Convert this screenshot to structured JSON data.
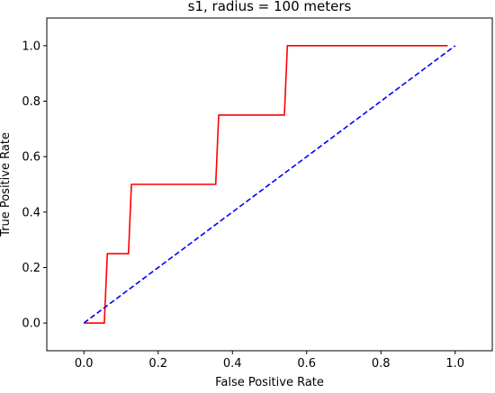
{
  "chart_data": {
    "type": "line",
    "title": "s1, radius = 100 meters",
    "xlabel": "False Positive Rate",
    "ylabel": "True Positive Rate",
    "xlim": [
      -0.1,
      1.1
    ],
    "ylim": [
      -0.1,
      1.1
    ],
    "xticks": [
      0.0,
      0.2,
      0.4,
      0.6,
      0.8,
      1.0
    ],
    "yticks": [
      0.0,
      0.2,
      0.4,
      0.6,
      0.8,
      1.0
    ],
    "xtick_labels": [
      "0.0",
      "0.2",
      "0.4",
      "0.6",
      "0.8",
      "1.0"
    ],
    "ytick_labels": [
      "0.0",
      "0.2",
      "0.4",
      "0.6",
      "0.8",
      "1.0"
    ],
    "grid": false,
    "series": [
      {
        "style": "solid",
        "color": "#ff0000",
        "x": [
          0.0,
          0.055,
          0.063,
          0.12,
          0.128,
          0.355,
          0.363,
          0.54,
          0.548,
          0.98
        ],
        "y": [
          0.0,
          0.0,
          0.25,
          0.25,
          0.5,
          0.5,
          0.75,
          0.75,
          1.0,
          1.0
        ]
      },
      {
        "style": "dashed",
        "color": "#0000ff",
        "x": [
          0.0,
          1.0
        ],
        "y": [
          0.0,
          1.0
        ]
      }
    ]
  }
}
